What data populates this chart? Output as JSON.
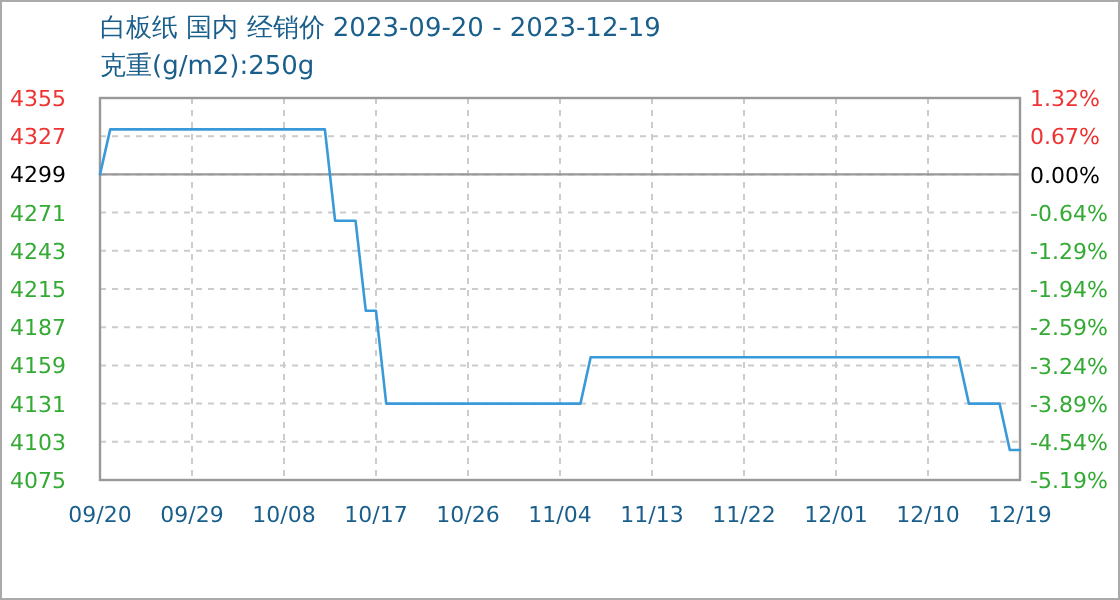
{
  "chart_data": {
    "type": "line",
    "title": "白板纸 国内 经销价 2023-09-20 - 2023-12-19",
    "subtitle": "克重(g/m2):250g",
    "x": [
      "2023-09-20",
      "2023-09-21",
      "2023-10-12",
      "2023-10-13",
      "2023-10-15",
      "2023-10-16",
      "2023-10-17",
      "2023-10-18",
      "2023-11-06",
      "2023-11-07",
      "2023-12-13",
      "2023-12-14",
      "2023-12-17",
      "2023-12-18",
      "2023-12-19"
    ],
    "series": [
      {
        "color": "#3a9ad9",
        "values": [
          4299,
          4332,
          4332,
          4265,
          4265,
          4199,
          4199,
          4131,
          4131,
          4165,
          4165,
          4131,
          4131,
          4097,
          4097
        ]
      }
    ],
    "xlim": [
      "2023-09-20",
      "2023-12-19"
    ],
    "xticks": [
      {
        "value": "2023-09-20",
        "label": "09/20"
      },
      {
        "value": "2023-09-29",
        "label": "09/29"
      },
      {
        "value": "2023-10-08",
        "label": "10/08"
      },
      {
        "value": "2023-10-17",
        "label": "10/17"
      },
      {
        "value": "2023-10-26",
        "label": "10/26"
      },
      {
        "value": "2023-11-04",
        "label": "11/04"
      },
      {
        "value": "2023-11-13",
        "label": "11/13"
      },
      {
        "value": "2023-11-22",
        "label": "11/22"
      },
      {
        "value": "2023-12-01",
        "label": "12/01"
      },
      {
        "value": "2023-12-10",
        "label": "12/10"
      },
      {
        "value": "2023-12-19",
        "label": "12/19"
      }
    ],
    "ylim": [
      4075,
      4355
    ],
    "yticks": [
      4075,
      4103,
      4131,
      4159,
      4187,
      4215,
      4243,
      4271,
      4299,
      4327,
      4355
    ],
    "y2lim": [
      -5.19,
      1.32
    ],
    "y2ticks": [
      {
        "value": -5.19,
        "label": "-5.19%"
      },
      {
        "value": -4.54,
        "label": "-4.54%"
      },
      {
        "value": -3.89,
        "label": "-3.89%"
      },
      {
        "value": -3.24,
        "label": "-3.24%"
      },
      {
        "value": -2.59,
        "label": "-2.59%"
      },
      {
        "value": -1.94,
        "label": "-1.94%"
      },
      {
        "value": -1.29,
        "label": "-1.29%"
      },
      {
        "value": -0.64,
        "label": "-0.64%"
      },
      {
        "value": 0,
        "label": "0.00%"
      },
      {
        "value": 0.67,
        "label": "0.67%"
      },
      {
        "value": 1.32,
        "label": "1.32%"
      }
    ],
    "ref_lines": [
      {
        "axis": "y",
        "value": 4299,
        "color": "#999999",
        "line_style": "solid"
      }
    ],
    "grid": true,
    "marker": "none",
    "line_style": "solid"
  }
}
